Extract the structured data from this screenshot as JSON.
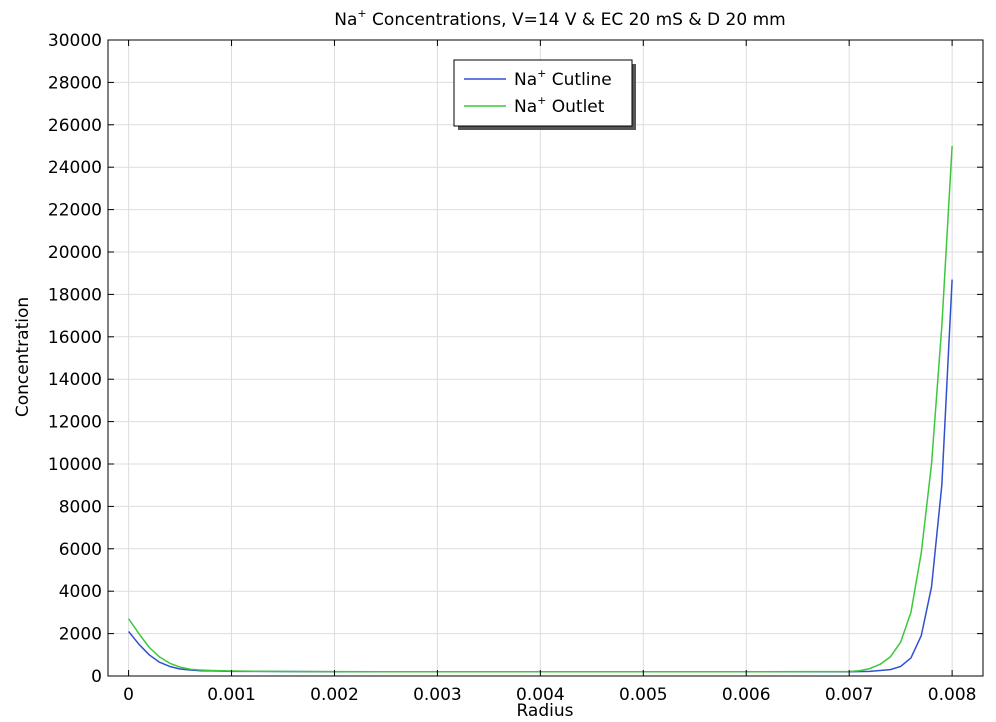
{
  "chart_data": {
    "type": "line",
    "title": {
      "prefix": "Na",
      "superscript": "+",
      "suffix": " Concentrations, V=14 V & EC 20 mS & D 20 mm"
    },
    "xlabel": "Radius",
    "ylabel": "Concentration",
    "xlim": [
      -0.0002,
      0.0083
    ],
    "ylim": [
      0,
      30000
    ],
    "xticks": [
      0,
      0.001,
      0.002,
      0.003,
      0.004,
      0.005,
      0.006,
      0.007,
      0.008
    ],
    "xtick_labels": [
      "0",
      "0.001",
      "0.002",
      "0.003",
      "0.004",
      "0.005",
      "0.006",
      "0.007",
      "0.008"
    ],
    "yticks": [
      0,
      2000,
      4000,
      6000,
      8000,
      10000,
      12000,
      14000,
      16000,
      18000,
      20000,
      22000,
      24000,
      26000,
      28000,
      30000
    ],
    "ytick_labels": [
      "0",
      "2000",
      "4000",
      "6000",
      "8000",
      "10000",
      "12000",
      "14000",
      "16000",
      "18000",
      "20000",
      "22000",
      "24000",
      "26000",
      "28000",
      "30000"
    ],
    "grid": true,
    "legend_position": "top-center",
    "series": [
      {
        "name": "Na+ Cutline",
        "legend_prefix": "Na",
        "legend_sup": "+",
        "legend_suffix": " Cutline",
        "color": "#3050d0",
        "x": [
          0,
          0.0001,
          0.0002,
          0.0003,
          0.0004,
          0.0005,
          0.0006,
          0.0007,
          0.0008,
          0.0009,
          0.001,
          0.0015,
          0.002,
          0.003,
          0.004,
          0.005,
          0.006,
          0.007,
          0.0072,
          0.0074,
          0.0075,
          0.0076,
          0.0077,
          0.0078,
          0.0079,
          0.008
        ],
        "y": [
          2100,
          1500,
          1000,
          650,
          450,
          330,
          280,
          250,
          240,
          230,
          220,
          210,
          200,
          200,
          200,
          200,
          200,
          200,
          220,
          300,
          450,
          850,
          1900,
          4200,
          9000,
          18700
        ]
      },
      {
        "name": "Na+ Outlet",
        "legend_prefix": "Na",
        "legend_sup": "+",
        "legend_suffix": " Outlet",
        "color": "#3cc83c",
        "x": [
          0,
          0.0001,
          0.0002,
          0.0003,
          0.0004,
          0.0005,
          0.0006,
          0.0007,
          0.0008,
          0.0009,
          0.001,
          0.0015,
          0.002,
          0.003,
          0.004,
          0.005,
          0.006,
          0.007,
          0.0071,
          0.0072,
          0.0073,
          0.0074,
          0.0075,
          0.0076,
          0.0077,
          0.0078,
          0.0079,
          0.008
        ],
        "y": [
          2700,
          2000,
          1350,
          900,
          600,
          420,
          320,
          280,
          260,
          245,
          235,
          215,
          205,
          200,
          200,
          200,
          200,
          210,
          250,
          350,
          550,
          900,
          1600,
          3000,
          5800,
          10000,
          16500,
          25000
        ]
      }
    ]
  }
}
